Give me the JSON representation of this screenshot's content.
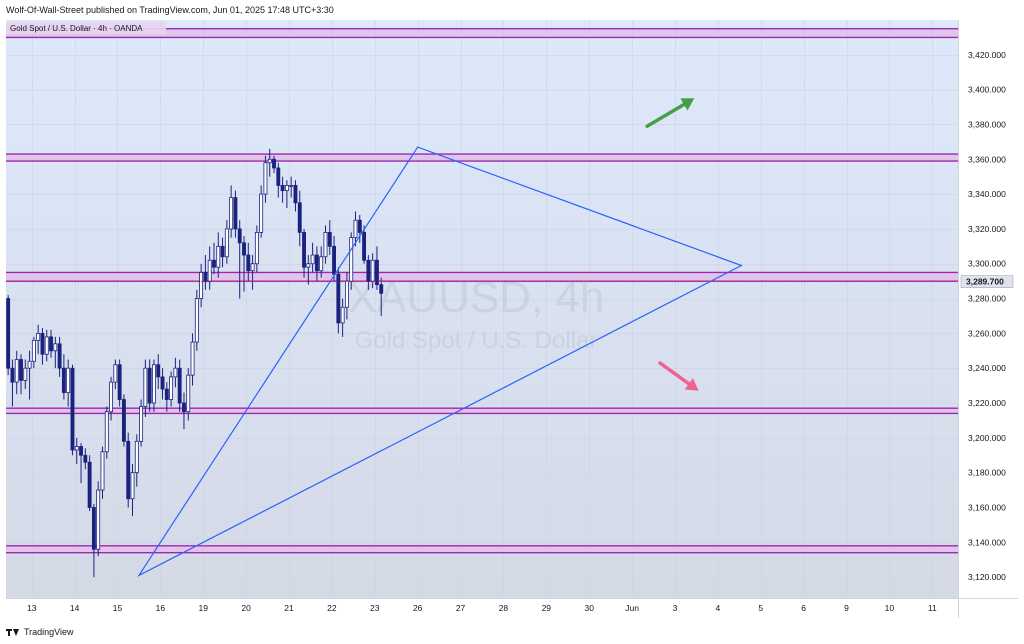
{
  "header": {
    "published": "Wolf-Of-Wall-Street published on TradingView.com, Jun 01, 2025 17:48 UTC+3:30"
  },
  "footer": {
    "brand": "TradingView",
    "logo_icon": "tradingview-logo-icon"
  },
  "chart_data": {
    "type": "candlestick",
    "symbol_line": "Gold Spot / U.S. Dollar · 4h · OANDA",
    "watermark_symbol": "XAUUSD, 4h",
    "watermark_name": "Gold Spot / U.S. Dollar",
    "current_price": 3289.7,
    "current_price_label": "3,289.700",
    "ylim": [
      3108,
      3440
    ],
    "y_ticks": [
      {
        "value": 3120,
        "label": "3,120.000"
      },
      {
        "value": 3140,
        "label": "3,140.000"
      },
      {
        "value": 3160,
        "label": "3,160.000"
      },
      {
        "value": 3180,
        "label": "3,180.000"
      },
      {
        "value": 3200,
        "label": "3,200.000"
      },
      {
        "value": 3220,
        "label": "3,220.000"
      },
      {
        "value": 3240,
        "label": "3,240.000"
      },
      {
        "value": 3260,
        "label": "3,260.000"
      },
      {
        "value": 3280,
        "label": "3,280.000"
      },
      {
        "value": 3300,
        "label": "3,300.000"
      },
      {
        "value": 3320,
        "label": "3,320.000"
      },
      {
        "value": 3340,
        "label": "3,340.000"
      },
      {
        "value": 3360,
        "label": "3,360.000"
      },
      {
        "value": 3380,
        "label": "3,380.000"
      },
      {
        "value": 3400,
        "label": "3,400.000"
      },
      {
        "value": 3420,
        "label": "3,420.000"
      }
    ],
    "x_ticks": [
      {
        "bar": 5.5,
        "label": "13"
      },
      {
        "bar": 15.5,
        "label": "14"
      },
      {
        "bar": 25.5,
        "label": "15"
      },
      {
        "bar": 35.5,
        "label": "16"
      },
      {
        "bar": 45.5,
        "label": "19"
      },
      {
        "bar": 55.5,
        "label": "20"
      },
      {
        "bar": 65.5,
        "label": "21"
      },
      {
        "bar": 75.5,
        "label": "22"
      },
      {
        "bar": 85.5,
        "label": "23"
      },
      {
        "bar": 95.5,
        "label": "26"
      },
      {
        "bar": 105.5,
        "label": "27"
      },
      {
        "bar": 115.5,
        "label": "28"
      },
      {
        "bar": 125.5,
        "label": "29"
      },
      {
        "bar": 135.5,
        "label": "30"
      },
      {
        "bar": 145.5,
        "label": "Jun"
      },
      {
        "bar": 155.5,
        "label": "3"
      },
      {
        "bar": 165.5,
        "label": "4"
      },
      {
        "bar": 175.5,
        "label": "5"
      },
      {
        "bar": 185.5,
        "label": "6"
      },
      {
        "bar": 195.5,
        "label": "9"
      },
      {
        "bar": 205.5,
        "label": "10"
      },
      {
        "bar": 215.5,
        "label": "11"
      }
    ],
    "bars_visible": 222,
    "colors": {
      "bull": "#ffffff",
      "bear": "#1a237e",
      "wick": "#1a237e",
      "zone_fill": "#e1bee7",
      "zone_line": "#9c27b0",
      "triangle": "#2962ff",
      "up_arrow": "#43a047",
      "down_arrow": "#f06292",
      "price_line": "#d32f2f"
    },
    "zones": [
      {
        "name": "top-zone",
        "low": 3430,
        "high": 3435
      },
      {
        "name": "resistance-zone",
        "low": 3359,
        "high": 3363
      },
      {
        "name": "mid-zone",
        "low": 3290,
        "high": 3295
      },
      {
        "name": "support-zone",
        "low": 3214,
        "high": 3217
      },
      {
        "name": "bottom-zone",
        "low": 3134,
        "high": 3138
      }
    ],
    "triangle": [
      [
        30.5,
        3121
      ],
      [
        95.5,
        3367
      ],
      [
        171,
        3299
      ]
    ],
    "arrows": [
      {
        "name": "up-arrow",
        "from": [
          149,
          3379
        ],
        "to": [
          160,
          3395
        ]
      },
      {
        "name": "down-arrow",
        "from": [
          152,
          3243
        ],
        "to": [
          161,
          3227
        ]
      }
    ],
    "candles": [
      [
        3280,
        3282,
        3236,
        3240
      ],
      [
        3240,
        3245,
        3218,
        3232
      ],
      [
        3232,
        3250,
        3225,
        3245
      ],
      [
        3245,
        3248,
        3225,
        3233
      ],
      [
        3233,
        3245,
        3228,
        3240
      ],
      [
        3240,
        3250,
        3222,
        3244
      ],
      [
        3244,
        3258,
        3240,
        3256
      ],
      [
        3256,
        3265,
        3248,
        3260
      ],
      [
        3260,
        3263,
        3242,
        3248
      ],
      [
        3248,
        3262,
        3244,
        3258
      ],
      [
        3258,
        3262,
        3246,
        3250
      ],
      [
        3250,
        3258,
        3240,
        3254
      ],
      [
        3254,
        3258,
        3235,
        3240
      ],
      [
        3240,
        3248,
        3222,
        3226
      ],
      [
        3226,
        3245,
        3218,
        3240
      ],
      [
        3240,
        3242,
        3190,
        3193
      ],
      [
        3193,
        3200,
        3185,
        3195
      ],
      [
        3195,
        3197,
        3174,
        3190
      ],
      [
        3190,
        3194,
        3182,
        3186
      ],
      [
        3186,
        3190,
        3158,
        3160
      ],
      [
        3160,
        3162,
        3120,
        3136
      ],
      [
        3136,
        3175,
        3132,
        3170
      ],
      [
        3170,
        3195,
        3165,
        3192
      ],
      [
        3192,
        3218,
        3188,
        3215
      ],
      [
        3215,
        3235,
        3210,
        3232
      ],
      [
        3232,
        3245,
        3228,
        3242
      ],
      [
        3242,
        3245,
        3218,
        3222
      ],
      [
        3222,
        3225,
        3195,
        3198
      ],
      [
        3198,
        3203,
        3160,
        3165
      ],
      [
        3165,
        3185,
        3155,
        3180
      ],
      [
        3180,
        3202,
        3172,
        3198
      ],
      [
        3198,
        3222,
        3195,
        3218
      ],
      [
        3218,
        3245,
        3212,
        3240
      ],
      [
        3240,
        3245,
        3215,
        3220
      ],
      [
        3220,
        3245,
        3215,
        3242
      ],
      [
        3242,
        3248,
        3228,
        3235
      ],
      [
        3235,
        3240,
        3222,
        3228
      ],
      [
        3228,
        3232,
        3215,
        3222
      ],
      [
        3222,
        3238,
        3218,
        3235
      ],
      [
        3235,
        3246,
        3229,
        3240
      ],
      [
        3240,
        3245,
        3215,
        3220
      ],
      [
        3220,
        3226,
        3205,
        3215
      ],
      [
        3215,
        3240,
        3210,
        3236
      ],
      [
        3236,
        3260,
        3230,
        3255
      ],
      [
        3255,
        3285,
        3250,
        3280
      ],
      [
        3280,
        3300,
        3275,
        3295
      ],
      [
        3295,
        3305,
        3285,
        3290
      ],
      [
        3290,
        3310,
        3285,
        3302
      ],
      [
        3302,
        3312,
        3294,
        3298
      ],
      [
        3298,
        3318,
        3292,
        3310
      ],
      [
        3310,
        3315,
        3298,
        3304
      ],
      [
        3304,
        3325,
        3300,
        3320
      ],
      [
        3320,
        3345,
        3315,
        3338
      ],
      [
        3338,
        3342,
        3315,
        3320
      ],
      [
        3320,
        3325,
        3280,
        3312
      ],
      [
        3312,
        3316,
        3284,
        3305
      ],
      [
        3305,
        3312,
        3290,
        3296
      ],
      [
        3296,
        3305,
        3285,
        3300
      ],
      [
        3300,
        3322,
        3295,
        3318
      ],
      [
        3318,
        3345,
        3315,
        3340
      ],
      [
        3340,
        3362,
        3335,
        3358
      ],
      [
        3358,
        3366,
        3350,
        3360
      ],
      [
        3360,
        3362,
        3352,
        3355
      ],
      [
        3355,
        3358,
        3338,
        3345
      ],
      [
        3345,
        3350,
        3335,
        3342
      ],
      [
        3342,
        3348,
        3332,
        3345
      ],
      [
        3345,
        3350,
        3338,
        3345
      ],
      [
        3345,
        3348,
        3330,
        3335
      ],
      [
        3335,
        3342,
        3310,
        3318
      ],
      [
        3318,
        3320,
        3292,
        3298
      ],
      [
        3298,
        3305,
        3288,
        3300
      ],
      [
        3300,
        3312,
        3295,
        3305
      ],
      [
        3305,
        3310,
        3290,
        3296
      ],
      [
        3296,
        3310,
        3292,
        3304
      ],
      [
        3304,
        3322,
        3300,
        3318
      ],
      [
        3318,
        3325,
        3305,
        3310
      ],
      [
        3310,
        3316,
        3290,
        3294
      ],
      [
        3294,
        3298,
        3260,
        3266
      ],
      [
        3266,
        3280,
        3258,
        3275
      ],
      [
        3275,
        3295,
        3268,
        3290
      ],
      [
        3290,
        3318,
        3285,
        3315
      ],
      [
        3315,
        3330,
        3310,
        3325
      ],
      [
        3325,
        3328,
        3312,
        3318
      ],
      [
        3318,
        3322,
        3300,
        3302
      ],
      [
        3302,
        3305,
        3285,
        3290
      ],
      [
        3290,
        3306,
        3286,
        3302
      ],
      [
        3302,
        3310,
        3285,
        3288
      ],
      [
        3288,
        3292,
        3270,
        3283
      ]
    ]
  }
}
